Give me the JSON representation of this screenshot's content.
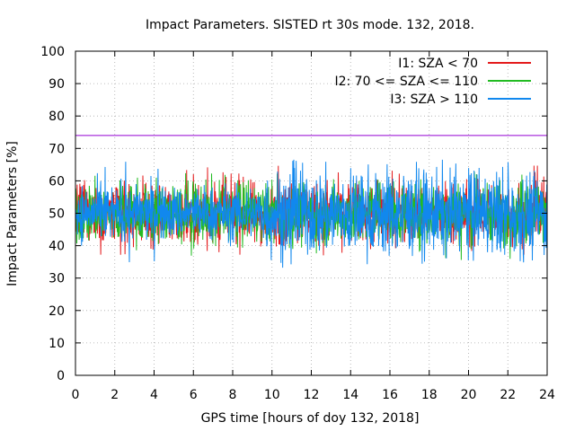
{
  "chart_data": {
    "type": "line",
    "title": "Impact Parameters. SISTED rt 30s mode. 132, 2018.",
    "xlabel": "GPS time [hours of doy 132, 2018]",
    "ylabel": "Impact Parameters [%]",
    "xlim": [
      0,
      24
    ],
    "ylim": [
      0,
      100
    ],
    "xticks": [
      0,
      2,
      4,
      6,
      8,
      10,
      12,
      14,
      16,
      18,
      20,
      22,
      24
    ],
    "yticks": [
      0,
      10,
      20,
      30,
      40,
      50,
      60,
      70,
      80,
      90,
      100
    ],
    "grid": true,
    "legend_position": "top-right",
    "reference_line": {
      "y": 74,
      "color": "#9400d3"
    },
    "series": [
      {
        "name": "I1: SZA < 70",
        "color": "#e41a1c",
        "mean": 50,
        "low": 37,
        "high": 65
      },
      {
        "name": "I2: 70 <= SZA <= 110",
        "color": "#22bb22",
        "mean": 50,
        "low": 35.5,
        "high": 63
      },
      {
        "name": "I3: SZA > 110",
        "color": "#1188ee",
        "mean": 50,
        "low": 33,
        "high": 66.5
      }
    ]
  }
}
